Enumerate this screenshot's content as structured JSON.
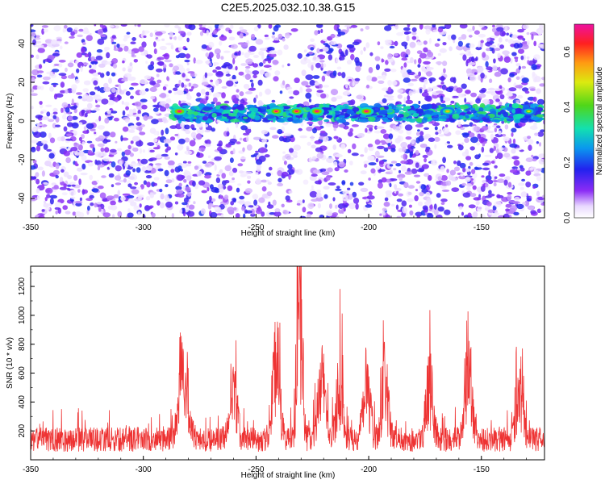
{
  "chart_data": [
    {
      "type": "heatmap",
      "title": "C2E5.2025.032.10.38.G15",
      "xlabel": "Height of straight line (km)",
      "ylabel": "Frequency (Hz)",
      "xlim": [
        -350,
        -122
      ],
      "ylim": [
        -50,
        50
      ],
      "x_ticks": [
        "-350",
        "-300",
        "-250",
        "-200",
        "-150"
      ],
      "y_ticks": [
        "-40",
        "-20",
        "0",
        "20",
        "40"
      ],
      "colorbar": {
        "label": "Normalized spectral amplitude",
        "range": [
          0.0,
          0.7
        ],
        "ticks": [
          "0.0",
          "0.2",
          "0.4",
          "0.6"
        ]
      },
      "band": {
        "center_hz": 4,
        "halfwidth_hz": 4
      },
      "hotspots": [
        {
          "x": -284,
          "y": 5,
          "v": 0.7
        },
        {
          "x": -241,
          "y": 5,
          "v": 0.68
        },
        {
          "x": -232,
          "y": 5,
          "v": 0.68
        },
        {
          "x": -223,
          "y": 5,
          "v": 0.7
        },
        {
          "x": -201,
          "y": 5,
          "v": 0.7
        },
        {
          "x": -165,
          "y": 5,
          "v": 0.52
        },
        {
          "x": -129,
          "y": 5,
          "v": 0.48
        }
      ],
      "gaps_km": [
        -298,
        -287,
        -240,
        -233,
        -230,
        -205,
        -197,
        -163
      ]
    },
    {
      "type": "line",
      "xlabel": "Height of straight line (km)",
      "ylabel": "SNR (10 * v/v)",
      "xlim": [
        -350,
        -122
      ],
      "ylim": [
        0,
        1340
      ],
      "x_ticks": [
        "-350",
        "-300",
        "-250",
        "-200",
        "-150"
      ],
      "y_ticks": [
        "200",
        "400",
        "600",
        "800",
        "1000",
        "1200"
      ],
      "series_color": "#ee3333",
      "baseline_level": 160,
      "peaks": [
        {
          "x": -283,
          "y": 740
        },
        {
          "x": -281,
          "y": 560
        },
        {
          "x": -260,
          "y": 520
        },
        {
          "x": -241,
          "y": 760
        },
        {
          "x": -231,
          "y": 1340
        },
        {
          "x": -230,
          "y": 1040
        },
        {
          "x": -221,
          "y": 620
        },
        {
          "x": -213,
          "y": 560
        },
        {
          "x": -201,
          "y": 650
        },
        {
          "x": -193,
          "y": 590
        },
        {
          "x": -173,
          "y": 560
        },
        {
          "x": -156,
          "y": 760
        },
        {
          "x": -133,
          "y": 460
        }
      ]
    }
  ]
}
